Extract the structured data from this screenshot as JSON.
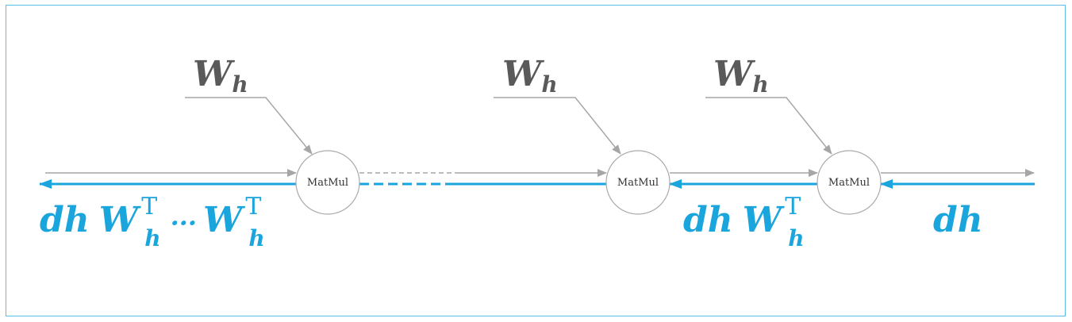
{
  "colors": {
    "forward": "#a6a6a6",
    "backward": "#1aa5dc",
    "weight_label": "#5a5a5a",
    "frame": "#5bbde6"
  },
  "nodes": [
    {
      "label": "MatMul"
    },
    {
      "label": "MatMul"
    },
    {
      "label": "MatMul"
    }
  ],
  "weights": [
    {
      "main": "W",
      "sub": "h"
    },
    {
      "main": "W",
      "sub": "h"
    },
    {
      "main": "W",
      "sub": "h"
    }
  ],
  "gradients": {
    "input": {
      "text": "dh"
    },
    "middle": {
      "prefix": "dh",
      "main": "W",
      "sub": "h",
      "sup": "T"
    },
    "output": {
      "prefix": "dh",
      "main1": "W",
      "sub1": "h",
      "sup1": "T",
      "dots": "···",
      "main2": "W",
      "sub2": "h",
      "sup2": "T"
    }
  }
}
